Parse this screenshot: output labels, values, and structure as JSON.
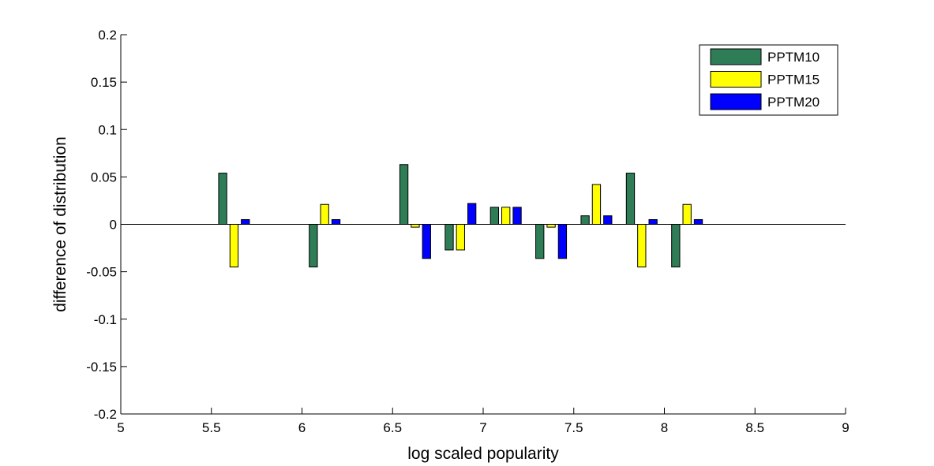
{
  "chart_data": {
    "type": "bar",
    "title": "",
    "xlabel": "log scaled popularity",
    "ylabel": "difference of distribution",
    "xlim": [
      5,
      9
    ],
    "ylim": [
      -0.2,
      0.2
    ],
    "xticks": [
      5,
      5.5,
      6,
      6.5,
      7,
      7.5,
      8,
      8.5,
      9
    ],
    "xtick_labels": [
      "5",
      "5.5",
      "6",
      "6.5",
      "7",
      "7.5",
      "8",
      "8.5",
      "9"
    ],
    "yticks": [
      -0.2,
      -0.15,
      -0.1,
      -0.05,
      0,
      0.05,
      0.1,
      0.15,
      0.2
    ],
    "ytick_labels": [
      "-0.2",
      "-0.15",
      "-0.1",
      "-0.05",
      "0",
      "0.05",
      "0.1",
      "0.15",
      "0.2"
    ],
    "grid": false,
    "legend_position": "top-right",
    "categories": [
      5.625,
      6.125,
      6.625,
      6.875,
      7.125,
      7.375,
      7.625,
      7.875,
      8.125
    ],
    "series": [
      {
        "name": "PPTM10",
        "color": "#2e7d57",
        "values": [
          0.054,
          -0.045,
          0.063,
          -0.027,
          0.018,
          -0.036,
          0.009,
          0.054,
          -0.045
        ]
      },
      {
        "name": "PPTM15",
        "color": "#ffff00",
        "values": [
          -0.045,
          0.021,
          -0.003,
          -0.027,
          0.018,
          -0.003,
          0.042,
          -0.045,
          0.021
        ]
      },
      {
        "name": "PPTM20",
        "color": "#0000ff",
        "values": [
          0.005,
          0.005,
          -0.036,
          0.022,
          0.018,
          -0.036,
          0.009,
          0.005,
          0.005
        ]
      }
    ]
  }
}
